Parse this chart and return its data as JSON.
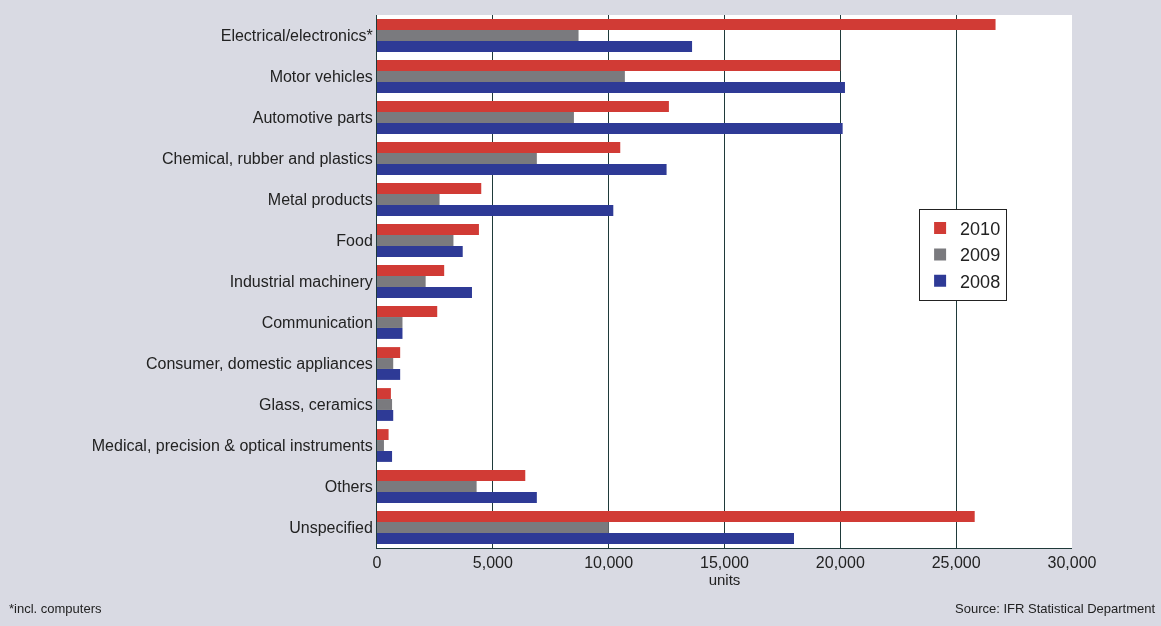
{
  "chart_data": {
    "type": "bar",
    "orientation": "horizontal",
    "categories": [
      "Electrical/electronics*",
      "Motor vehicles",
      "Automotive parts",
      "Chemical, rubber and plastics",
      "Metal products",
      "Food",
      "Industrial machinery",
      "Communication",
      "Consumer, domestic appliances",
      "Glass, ceramics",
      "Medical, precision & optical instruments",
      "Others",
      "Unspecified"
    ],
    "series": [
      {
        "name": "2010",
        "color": "#d13b35",
        "values": [
          26700,
          20000,
          12600,
          10500,
          4500,
          4400,
          2900,
          2600,
          1000,
          600,
          500,
          6400,
          25800
        ]
      },
      {
        "name": "2009",
        "color": "#7a7a7e",
        "values": [
          8700,
          10700,
          8500,
          6900,
          2700,
          3300,
          2100,
          1100,
          700,
          650,
          300,
          4300,
          10000
        ]
      },
      {
        "name": "2008",
        "color": "#2e3a96",
        "values": [
          13600,
          20200,
          20100,
          12500,
          10200,
          3700,
          4100,
          1100,
          1000,
          700,
          650,
          6900,
          18000
        ]
      }
    ],
    "xlabel": "units",
    "xlim": [
      0,
      30000
    ],
    "xticks": [
      {
        "value": 0,
        "label": "0"
      },
      {
        "value": 5000,
        "label": "5,000"
      },
      {
        "value": 10000,
        "label": "10,000"
      },
      {
        "value": 15000,
        "label": "15,000"
      },
      {
        "value": 20000,
        "label": "20,000"
      },
      {
        "value": 25000,
        "label": "25,000"
      },
      {
        "value": 30000,
        "label": "30,000"
      }
    ],
    "grid": "x",
    "legend": "right",
    "annotations": [
      "*incl. computers",
      "Source: IFR Statistical Department"
    ]
  }
}
